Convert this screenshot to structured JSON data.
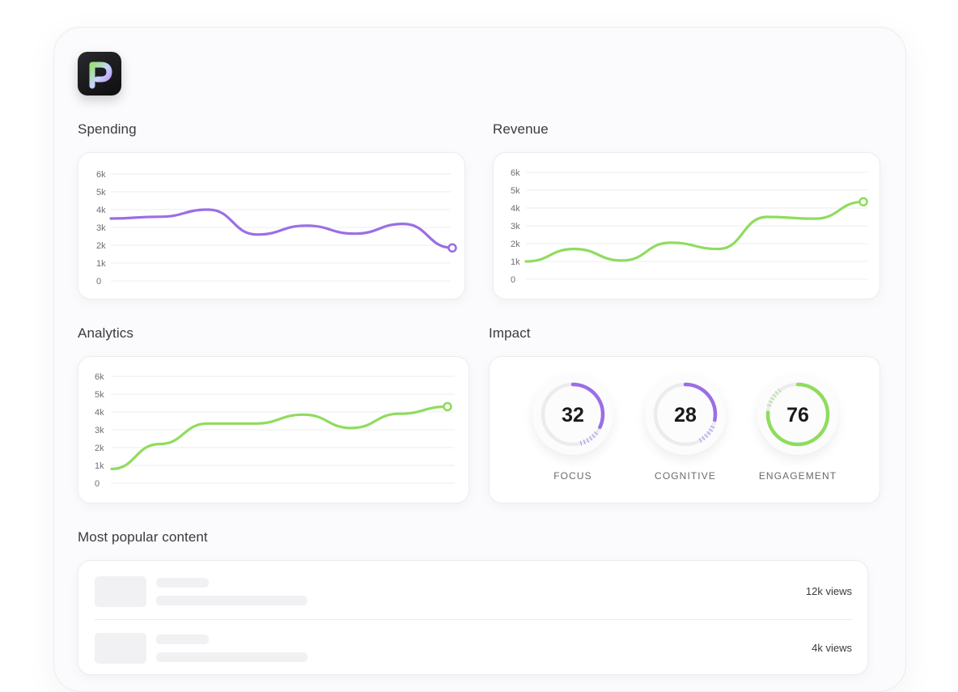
{
  "sections": {
    "spending": "Spending",
    "revenue": "Revenue",
    "analytics": "Analytics",
    "impact": "Impact",
    "popular": "Most popular content"
  },
  "colors": {
    "purple": "#9b6ee6",
    "green": "#8fdc5e",
    "grid": "#ededf0"
  },
  "icons": {
    "logo": "p-letter-logo-icon"
  },
  "chart_data": [
    {
      "type": "line",
      "title": "Spending",
      "y_ticks": [
        "6k",
        "5k",
        "4k",
        "3k",
        "2k",
        "1k",
        "0"
      ],
      "ylim": [
        0,
        6000
      ],
      "x": [
        0,
        1,
        2,
        3,
        4,
        5,
        6,
        7
      ],
      "series": [
        {
          "values": [
            3500,
            3600,
            4000,
            2600,
            3100,
            2650,
            3200,
            1850
          ]
        }
      ],
      "color": "#9b6ee6",
      "grid": true
    },
    {
      "type": "line",
      "title": "Revenue",
      "y_ticks": [
        "6k",
        "5k",
        "4k",
        "3k",
        "2k",
        "1k",
        "0"
      ],
      "ylim": [
        0,
        6000
      ],
      "x": [
        0,
        1,
        2,
        3,
        4,
        5,
        6,
        7
      ],
      "series": [
        {
          "values": [
            1000,
            1700,
            1050,
            2050,
            1700,
            3500,
            3400,
            4350
          ]
        }
      ],
      "color": "#8fdc5e",
      "grid": true
    },
    {
      "type": "line",
      "title": "Analytics",
      "y_ticks": [
        "6k",
        "5k",
        "4k",
        "3k",
        "2k",
        "1k",
        "0"
      ],
      "ylim": [
        0,
        6000
      ],
      "x": [
        0,
        1,
        2,
        3,
        4,
        5,
        6,
        7
      ],
      "series": [
        {
          "values": [
            800,
            2200,
            3350,
            3350,
            3850,
            3100,
            3900,
            4300
          ]
        }
      ],
      "color": "#8fdc5e",
      "grid": true
    }
  ],
  "impact": {
    "gauges": [
      {
        "value": "32",
        "label": "FOCUS",
        "fraction": 0.32,
        "color": "#9b6ee6"
      },
      {
        "value": "28",
        "label": "COGNITIVE",
        "fraction": 0.28,
        "color": "#9b6ee6"
      },
      {
        "value": "76",
        "label": "ENGAGEMENT",
        "fraction": 0.76,
        "color": "#8fdc5e"
      }
    ]
  },
  "popular": {
    "rows": [
      {
        "views": "12k views"
      },
      {
        "views": "4k views"
      }
    ]
  }
}
